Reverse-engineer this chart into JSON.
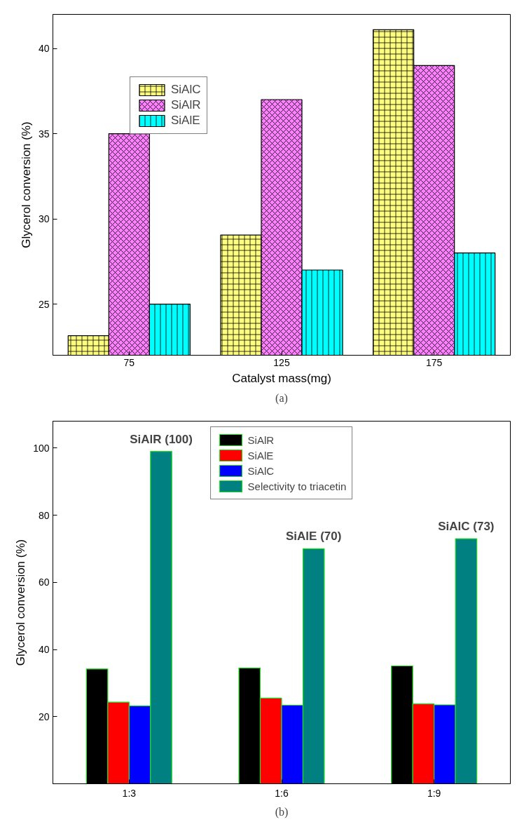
{
  "chart_data": [
    {
      "type": "bar",
      "xlabel": "Catalyst mass(mg)",
      "ylabel": "Glycerol conversion (%)",
      "categories": [
        "75",
        "125",
        "175"
      ],
      "series": [
        {
          "name": "SiAlC",
          "color": "#ffff80",
          "values": [
            23.15,
            29.05,
            41.1
          ]
        },
        {
          "name": "SiAlR",
          "color": "#ff80ff",
          "values": [
            35,
            37,
            39
          ]
        },
        {
          "name": "SiAlE",
          "color": "#00ffff",
          "values": [
            25,
            27,
            28
          ]
        }
      ],
      "ylim": [
        22,
        42
      ],
      "yticks": [
        25,
        30,
        35,
        40
      ],
      "legend": "top left",
      "grid": false,
      "annotations": [
        "(a)"
      ]
    },
    {
      "type": "bar",
      "ylabel": "Glycerol conversion (%)",
      "categories": [
        "1:3",
        "1:6",
        "1:9"
      ],
      "series": [
        {
          "name": "SiAlR",
          "color": "#000000",
          "values": [
            34.2,
            34.5,
            35.1
          ]
        },
        {
          "name": "SiAlE",
          "color": "#ff0000",
          "values": [
            24.3,
            25.5,
            23.8
          ]
        },
        {
          "name": "SiAlC",
          "color": "#0000ff",
          "values": [
            23.2,
            23.4,
            23.5
          ]
        },
        {
          "name": "Selectivity to triacetin",
          "color": "#008080",
          "values": [
            99,
            70,
            73
          ]
        }
      ],
      "ylim": [
        0,
        108
      ],
      "yticks": [
        20,
        40,
        60,
        80,
        100
      ],
      "legend": "top",
      "grid": false,
      "annotations": [
        "SiAlR (100)",
        "SiAlE (70)",
        "SiAlC (73)",
        "(b)"
      ]
    }
  ]
}
